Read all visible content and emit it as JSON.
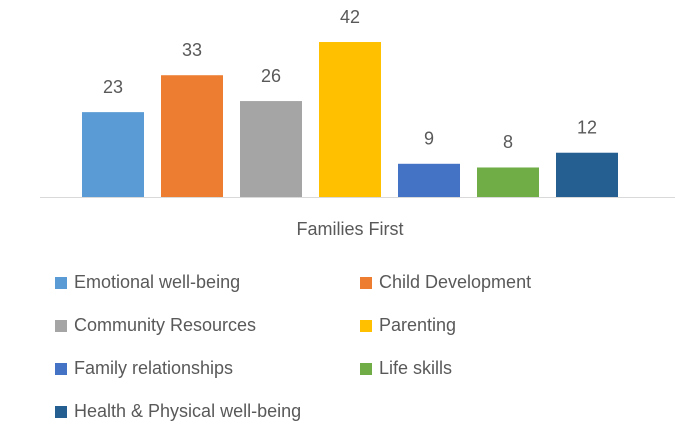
{
  "chart_data": {
    "type": "bar",
    "categories": [
      "Families First"
    ],
    "series": [
      {
        "name": "Emotional well-being",
        "color": "#5b9bd5",
        "values": [
          23
        ]
      },
      {
        "name": "Child Development",
        "color": "#ed7d31",
        "values": [
          33
        ]
      },
      {
        "name": "Community Resources",
        "color": "#a5a5a5",
        "values": [
          26
        ]
      },
      {
        "name": "Parenting",
        "color": "#ffc000",
        "values": [
          42
        ]
      },
      {
        "name": "Family relationships",
        "color": "#4472c4",
        "values": [
          9
        ]
      },
      {
        "name": "Life skills",
        "color": "#70ad47",
        "values": [
          8
        ]
      },
      {
        "name": "Health & Physical well-being",
        "color": "#255e91",
        "values": [
          12
        ]
      }
    ]
  }
}
